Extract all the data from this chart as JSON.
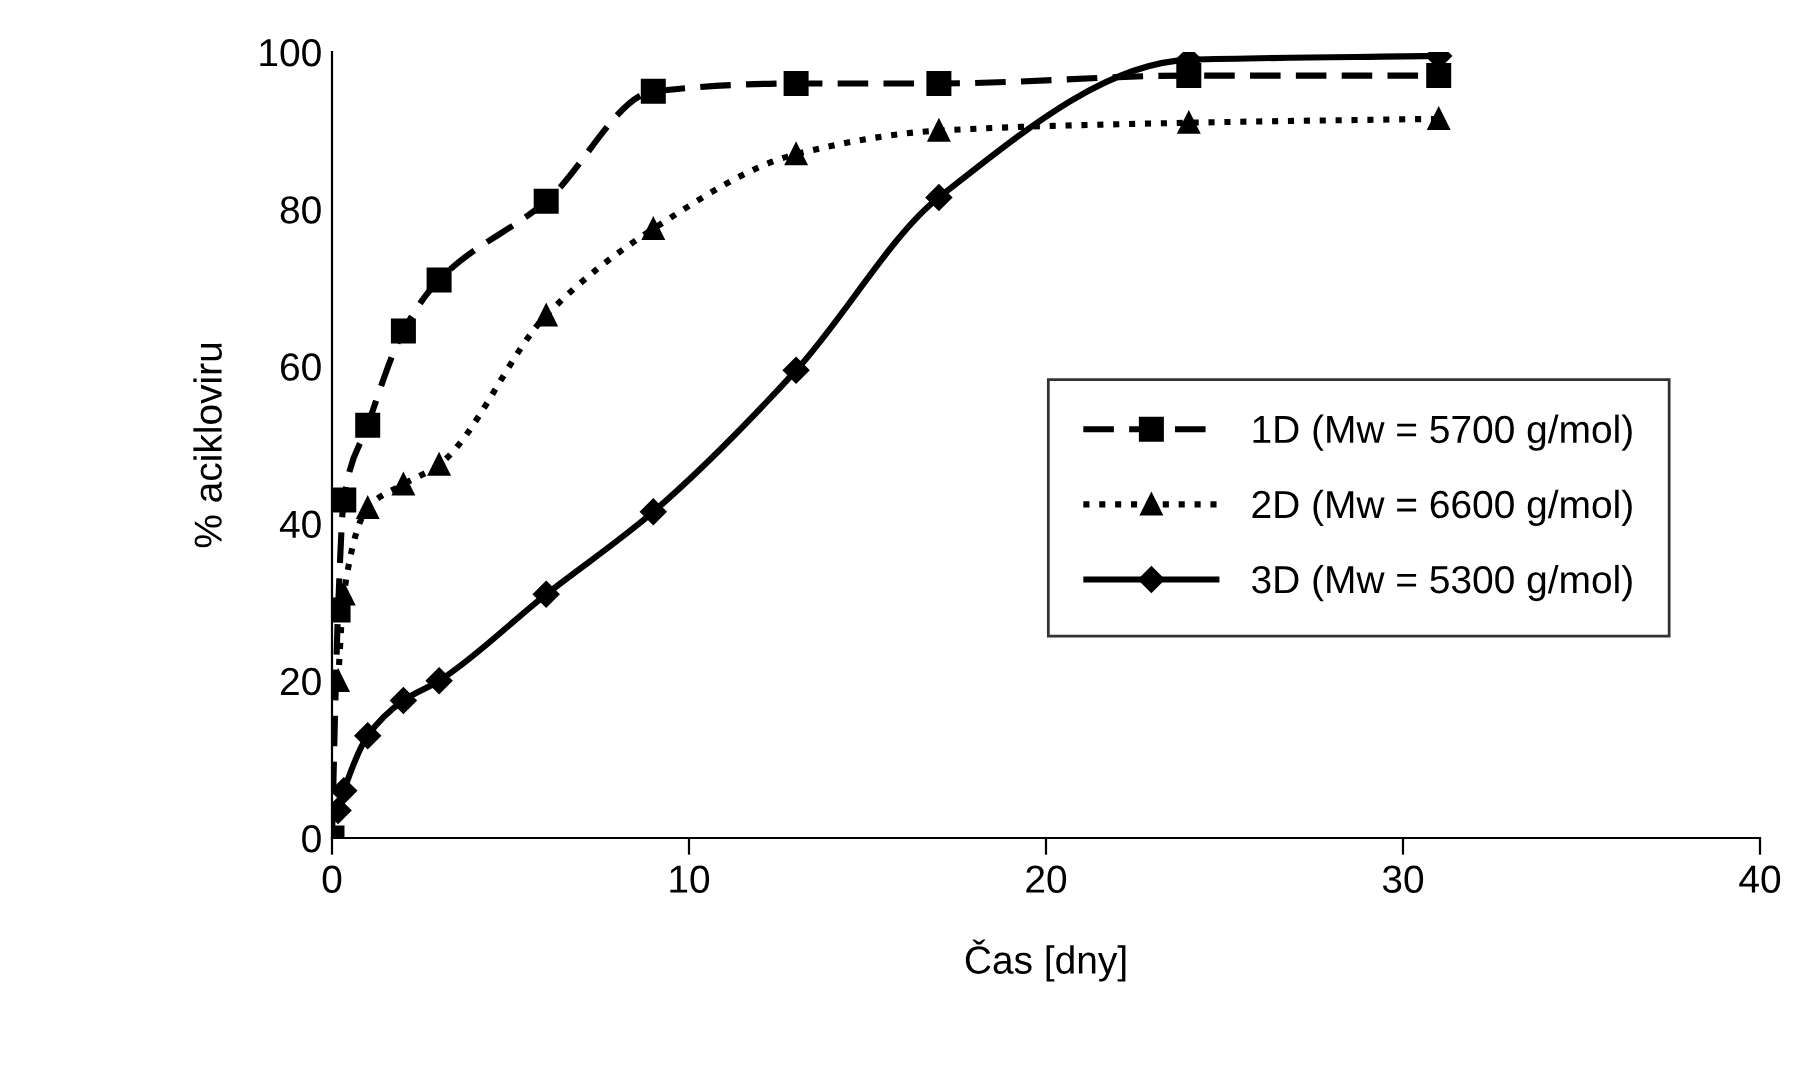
{
  "chart_data": {
    "type": "line",
    "xlabel": "Čas [dny]",
    "ylabel": "% acikloviru",
    "xlim": [
      0,
      40
    ],
    "xticks": [
      0,
      10,
      20,
      30,
      40
    ],
    "ylim": [
      0,
      100
    ],
    "yticks": [
      0,
      20,
      40,
      60,
      80,
      100
    ],
    "grid": false,
    "legend": "right",
    "series": [
      {
        "name": "1D (Mw = 5700 g/mol)",
        "color": "#000000",
        "marker": "square",
        "line_style": "dashed",
        "x": [
          0,
          0.17,
          0.33,
          1,
          2,
          3,
          6,
          9,
          13,
          17,
          24,
          31
        ],
        "values": [
          0,
          29,
          43,
          52.5,
          64.5,
          71,
          81,
          95,
          96,
          96,
          97,
          97
        ]
      },
      {
        "name": "2D (Mw = 6600 g/mol)",
        "color": "#000000",
        "marker": "triangle",
        "line_style": "dotted",
        "x": [
          0.17,
          0.33,
          1,
          2,
          3,
          6,
          9,
          13,
          17,
          24,
          31
        ],
        "values": [
          20,
          31,
          42,
          45,
          47.5,
          66.5,
          77.5,
          87,
          90,
          91,
          91.5
        ]
      },
      {
        "name": "3D (Mw = 5300 g/mol)",
        "color": "#000000",
        "marker": "diamond",
        "line_style": "solid",
        "x": [
          0.17,
          0.33,
          1,
          2,
          3,
          6,
          9,
          13,
          17,
          24,
          31
        ],
        "values": [
          3.5,
          6,
          13,
          17.5,
          20,
          31,
          41.5,
          59.5,
          81.5,
          99,
          99.5
        ]
      }
    ]
  }
}
